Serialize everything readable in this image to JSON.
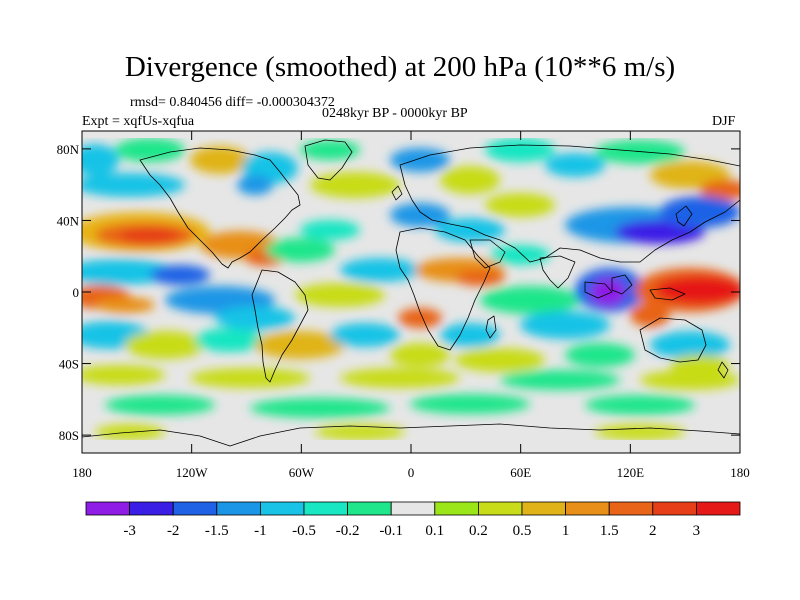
{
  "title": "Divergence (smoothed) at 200 hPa (10**6 m/s)",
  "stats": "rmsd= 0.840456 diff= -0.000304372",
  "experiment": "Expt = xqfUs-xqfua",
  "period": "0248kyr BP - 0000kyr BP",
  "season": "DJF",
  "map": {
    "projection": "cylindrical-equidistant",
    "lon_range": [
      -180,
      180
    ],
    "lat_range": [
      -90,
      90
    ],
    "background_color": "#e6e6e6",
    "coastline_color": "#000000"
  },
  "axes": {
    "y_ticks": [
      {
        "label": "80N",
        "lat": 80
      },
      {
        "label": "40N",
        "lat": 40
      },
      {
        "label": "0",
        "lat": 0
      },
      {
        "label": "40S",
        "lat": -40
      },
      {
        "label": "80S",
        "lat": -80
      }
    ],
    "x_ticks": [
      {
        "label": "180",
        "lon": -180
      },
      {
        "label": "120W",
        "lon": -120
      },
      {
        "label": "60W",
        "lon": -60
      },
      {
        "label": "0",
        "lon": 0
      },
      {
        "label": "60E",
        "lon": 60
      },
      {
        "label": "120E",
        "lon": 120
      },
      {
        "label": "180",
        "lon": 180
      }
    ]
  },
  "colorbar": {
    "colors": [
      "#8f1de6",
      "#3a1ee6",
      "#1f62e6",
      "#1b96e6",
      "#19c3e6",
      "#19e6c2",
      "#1fe68a",
      "#e6e6e6",
      "#9be619",
      "#c8dc19",
      "#e0b419",
      "#e88f19",
      "#e86419",
      "#e63e19",
      "#e61919"
    ],
    "labels": [
      "-3",
      "-2",
      "-1.5",
      "-1",
      "-0.5",
      "-0.2",
      "-0.1",
      "0.1",
      "0.2",
      "0.5",
      "1",
      "1.5",
      "2",
      "3"
    ]
  }
}
